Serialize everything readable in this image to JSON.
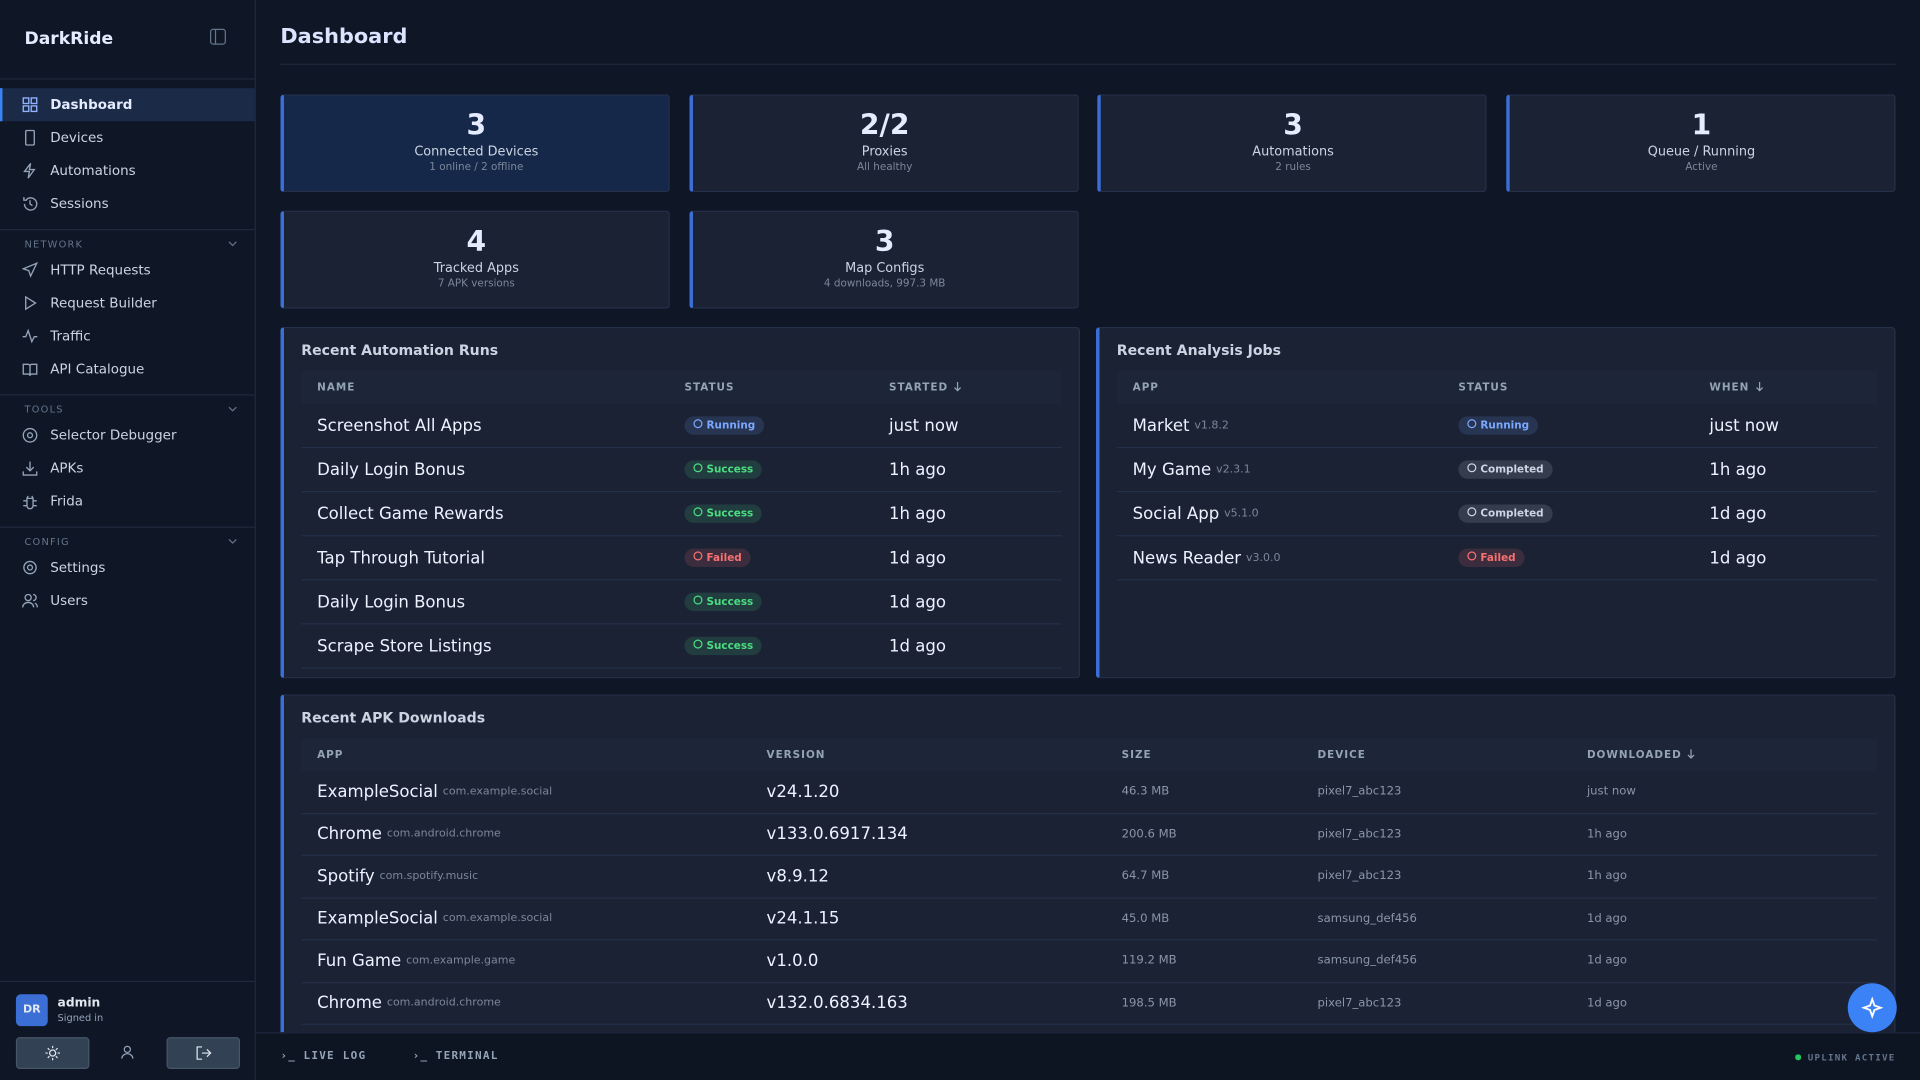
{
  "sidebar": {
    "brand": "DarkRide",
    "items": [
      "Dashboard",
      "Devices",
      "Automations",
      "Sessions"
    ],
    "groups": [
      {
        "title": "NETWORK",
        "items": [
          "HTTP Requests",
          "Request Builder",
          "Traffic",
          "API Catalogue"
        ]
      },
      {
        "title": "TOOLS",
        "items": [
          "Selector Debugger",
          "APKs",
          "Frida"
        ]
      },
      {
        "title": "CONFIG",
        "items": [
          "Settings",
          "Users"
        ]
      }
    ],
    "user": {
      "initials": "DR",
      "name": "admin",
      "status": "Signed in"
    }
  },
  "header": {
    "title": "Dashboard"
  },
  "stats": [
    {
      "value": 3,
      "label": "Connected Devices",
      "sub": "1 online / 2 offline"
    },
    {
      "value": "2/2",
      "label": "Proxies",
      "sub": "All healthy"
    },
    {
      "value": 3,
      "label": "Automations",
      "sub": "2 rules"
    },
    {
      "value": 1,
      "label": "Queue / Running",
      "sub": "Active"
    },
    {
      "value": 4,
      "label": "Tracked Apps",
      "sub": "7 APK versions"
    },
    {
      "value": 3,
      "label": "Map Configs",
      "sub": "4 downloads, 997.3 MB"
    }
  ],
  "automation_runs": {
    "title": "Recent Automation Runs",
    "columns": [
      "NAME",
      "STATUS",
      "STARTED"
    ],
    "rows": [
      {
        "name": "Screenshot All Apps",
        "status": {
          "label": "Running",
          "color": "#7aa7ff"
        },
        "when": "just now"
      },
      {
        "name": "Daily Login Bonus",
        "status": {
          "label": "Success",
          "color": "#4ade80"
        },
        "when": "1h ago"
      },
      {
        "name": "Collect Game Rewards",
        "status": {
          "label": "Success",
          "color": "#4ade80"
        },
        "when": "1h ago"
      },
      {
        "name": "Tap Through Tutorial",
        "status": {
          "label": "Failed",
          "color": "#f87171"
        },
        "when": "1d ago"
      },
      {
        "name": "Daily Login Bonus",
        "status": {
          "label": "Success",
          "color": "#4ade80"
        },
        "when": "1d ago"
      },
      {
        "name": "Scrape Store Listings",
        "status": {
          "label": "Success",
          "color": "#4ade80"
        },
        "when": "1d ago"
      }
    ]
  },
  "analysis_jobs": {
    "title": "Recent Analysis Jobs",
    "columns": [
      "APP",
      "STATUS",
      "WHEN"
    ],
    "rows": [
      {
        "app": "Market",
        "version": "v1.8.2",
        "status": {
          "label": "Running",
          "color": "#7aa7ff"
        },
        "when": "just now"
      },
      {
        "app": "My Game",
        "version": "v2.3.1",
        "status": {
          "label": "Completed",
          "color": "#cbd5e1"
        },
        "when": "1h ago"
      },
      {
        "app": "Social App",
        "version": "v5.1.0",
        "status": {
          "label": "Completed",
          "color": "#cbd5e1"
        },
        "when": "1d ago"
      },
      {
        "app": "News Reader",
        "version": "v3.0.0",
        "status": {
          "label": "Failed",
          "color": "#f87171"
        },
        "when": "1d ago"
      }
    ]
  },
  "apk_downloads": {
    "title": "Recent APK Downloads",
    "columns": [
      "APP",
      "VERSION",
      "SIZE",
      "DEVICE",
      "DOWNLOADED"
    ],
    "rows": [
      {
        "app": "ExampleSocial",
        "package": "com.example.social",
        "version": "v24.1.20",
        "size": "46.3 MB",
        "device": "pixel7_abc123",
        "when": "just now"
      },
      {
        "app": "Chrome",
        "package": "com.android.chrome",
        "version": "v133.0.6917.134",
        "size": "200.6 MB",
        "device": "pixel7_abc123",
        "when": "1h ago"
      },
      {
        "app": "Spotify",
        "package": "com.spotify.music",
        "version": "v8.9.12",
        "size": "64.7 MB",
        "device": "pixel7_abc123",
        "when": "1h ago"
      },
      {
        "app": "ExampleSocial",
        "package": "com.example.social",
        "version": "v24.1.15",
        "size": "45.0 MB",
        "device": "samsung_def456",
        "when": "1d ago"
      },
      {
        "app": "Fun Game",
        "package": "com.example.game",
        "version": "v1.0.0",
        "size": "119.2 MB",
        "device": "samsung_def456",
        "when": "1d ago"
      },
      {
        "app": "Chrome",
        "package": "com.android.chrome",
        "version": "v132.0.6834.163",
        "size": "198.5 MB",
        "device": "pixel7_abc123",
        "when": "1d ago"
      }
    ]
  },
  "footer": {
    "tabs": [
      "LIVE LOG",
      "TERMINAL"
    ],
    "status": "UPLINK ACTIVE"
  }
}
